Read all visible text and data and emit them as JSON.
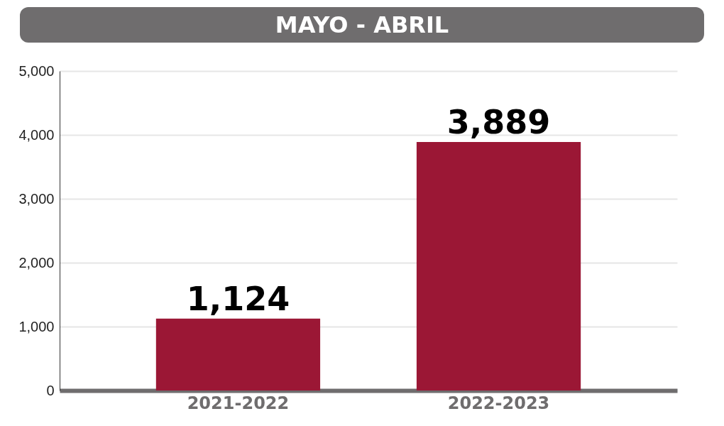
{
  "chart_data": {
    "type": "bar",
    "title": "MAYO - ABRIL",
    "categories": [
      "2021-2022",
      "2022-2023"
    ],
    "values": [
      1124,
      3889
    ],
    "color": "#9b1735",
    "value_labels": [
      "1,124",
      "3,889"
    ],
    "ylim": [
      0,
      5000
    ],
    "yticks": [
      0,
      {
        "value": 1000,
        "label": "1,000"
      },
      {
        "value": 2000,
        "label": "2,000"
      },
      {
        "value": 3000,
        "label": "3,000"
      },
      {
        "value": 4000,
        "label": "4,000"
      },
      {
        "value": 5000,
        "label": "5,000"
      }
    ],
    "grid": "y"
  }
}
